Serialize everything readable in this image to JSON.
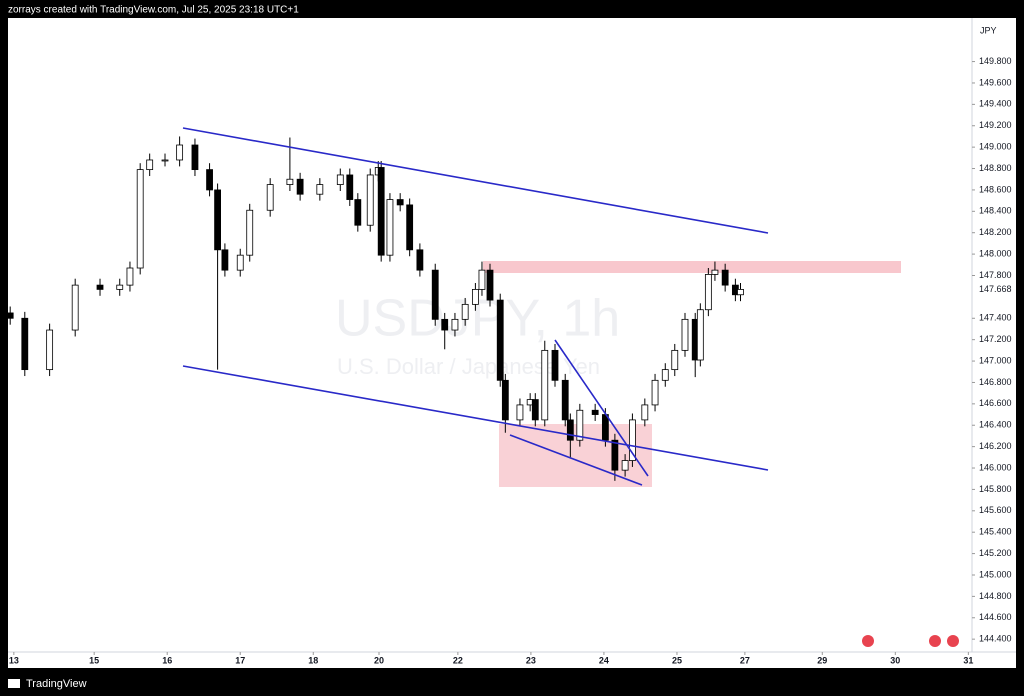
{
  "header": {
    "text": "zorrays created with TradingView.com, Jul 25, 2025 23:18 UTC+1"
  },
  "footer": {
    "brand": "TradingView"
  },
  "chart_data": {
    "type": "candlestick",
    "title": "USDJPY, 1h",
    "subtitle": "U.S. Dollar / Japanese Yen",
    "currency": "JPY",
    "last_price": {
      "value": 147.668,
      "label": "147.668"
    },
    "up_color": "#ffffff",
    "down_color": "#000000",
    "wick_color": "#000000",
    "x": [
      -0.05,
      0.15,
      0.49,
      0.84,
      1.18,
      1.45,
      1.59,
      1.73,
      1.86,
      2.07,
      2.27,
      2.48,
      2.68,
      2.79,
      2.89,
      3.1,
      3.23,
      3.51,
      3.78,
      3.92,
      4.19,
      4.47,
      4.6,
      4.71,
      4.88,
      4.99,
      5.03,
      5.15,
      5.29,
      5.42,
      5.56,
      5.77,
      5.9,
      6.04,
      6.18,
      6.32,
      6.41,
      6.52,
      6.66,
      6.73,
      6.93,
      7.07,
      7.14,
      7.27,
      7.41,
      7.55,
      7.62,
      7.75,
      7.96,
      8.1,
      8.23,
      8.37,
      8.47,
      8.64,
      8.78,
      8.92,
      9.05,
      9.19,
      9.33,
      9.4,
      9.51,
      9.6,
      9.74,
      9.88,
      9.95
    ],
    "open": [
      147.45,
      147.4,
      146.92,
      147.29,
      147.71,
      147.67,
      147.71,
      147.87,
      148.79,
      148.88,
      148.88,
      149.02,
      148.79,
      148.6,
      148.04,
      147.85,
      147.99,
      148.41,
      148.65,
      148.7,
      148.56,
      148.65,
      148.74,
      148.51,
      148.27,
      148.74,
      148.81,
      147.99,
      148.51,
      148.46,
      148.04,
      147.85,
      147.39,
      147.29,
      147.39,
      147.53,
      147.67,
      147.85,
      147.57,
      146.82,
      146.45,
      146.59,
      146.64,
      146.45,
      147.1,
      146.82,
      146.45,
      146.26,
      146.54,
      146.5,
      146.26,
      145.98,
      146.07,
      146.45,
      146.59,
      146.82,
      146.92,
      147.1,
      147.39,
      147.01,
      147.48,
      147.81,
      147.85,
      147.71,
      147.62
    ],
    "high": [
      147.51,
      147.46,
      147.35,
      147.77,
      147.77,
      147.77,
      147.93,
      148.85,
      148.94,
      148.94,
      149.1,
      149.08,
      148.85,
      148.66,
      148.1,
      148.05,
      148.47,
      148.71,
      149.09,
      148.76,
      148.71,
      148.8,
      148.8,
      148.57,
      148.8,
      148.87,
      148.87,
      148.57,
      148.57,
      148.52,
      148.1,
      147.91,
      147.45,
      147.45,
      147.59,
      147.73,
      147.93,
      147.91,
      147.63,
      146.88,
      146.65,
      146.7,
      146.7,
      147.19,
      147.16,
      146.88,
      146.51,
      146.6,
      146.6,
      146.56,
      146.32,
      146.13,
      146.51,
      146.65,
      146.88,
      146.98,
      147.16,
      147.45,
      147.45,
      147.54,
      147.87,
      147.93,
      147.91,
      147.77,
      147.73
    ],
    "low": [
      147.34,
      146.86,
      146.86,
      147.23,
      147.61,
      147.61,
      147.65,
      147.81,
      148.73,
      148.82,
      148.82,
      148.73,
      148.54,
      146.92,
      147.79,
      147.79,
      147.93,
      148.35,
      148.59,
      148.5,
      148.5,
      148.59,
      148.45,
      148.21,
      148.21,
      148.68,
      147.93,
      147.93,
      148.4,
      147.98,
      147.79,
      147.33,
      147.11,
      147.23,
      147.33,
      147.47,
      147.61,
      147.51,
      146.76,
      146.33,
      146.39,
      146.53,
      146.39,
      146.39,
      146.76,
      146.39,
      146.1,
      146.2,
      146.44,
      146.2,
      145.88,
      145.92,
      146.01,
      146.39,
      146.53,
      146.76,
      146.86,
      147.04,
      146.85,
      146.95,
      147.42,
      147.75,
      147.65,
      147.56,
      147.56
    ],
    "close": [
      147.4,
      146.92,
      147.29,
      147.71,
      147.67,
      147.71,
      147.87,
      148.79,
      148.88,
      148.88,
      149.02,
      148.79,
      148.6,
      148.04,
      147.85,
      147.99,
      148.41,
      148.65,
      148.7,
      148.56,
      148.65,
      148.74,
      148.51,
      148.27,
      148.74,
      148.81,
      147.99,
      148.51,
      148.46,
      148.04,
      147.85,
      147.39,
      147.29,
      147.39,
      147.53,
      147.67,
      147.85,
      147.57,
      146.82,
      146.45,
      146.59,
      146.64,
      146.45,
      147.1,
      146.82,
      146.45,
      146.26,
      146.54,
      146.5,
      146.26,
      145.98,
      146.07,
      146.45,
      146.59,
      146.82,
      146.92,
      147.1,
      147.39,
      147.01,
      147.48,
      147.81,
      147.85,
      147.71,
      147.62,
      147.67
    ],
    "xlim": [
      -0.08,
      13.12
    ],
    "xticks": [
      {
        "value": 0,
        "label": "13"
      },
      {
        "value": 1.1,
        "label": "15"
      },
      {
        "value": 2.1,
        "label": "16"
      },
      {
        "value": 3.1,
        "label": "17"
      },
      {
        "value": 4.1,
        "label": "18"
      },
      {
        "value": 5.0,
        "label": "20"
      },
      {
        "value": 6.08,
        "label": "22"
      },
      {
        "value": 7.08,
        "label": "23"
      },
      {
        "value": 8.08,
        "label": "24"
      },
      {
        "value": 9.08,
        "label": "25"
      },
      {
        "value": 10.01,
        "label": "27"
      },
      {
        "value": 11.07,
        "label": "29"
      },
      {
        "value": 12.07,
        "label": "30"
      },
      {
        "value": 13.07,
        "label": "31"
      }
    ],
    "ylim": [
      144.28,
      150.17
    ],
    "yticks": [
      {
        "value": 144.4,
        "label": "144.400"
      },
      {
        "value": 144.6,
        "label": "144.600"
      },
      {
        "value": 144.8,
        "label": "144.800"
      },
      {
        "value": 145.0,
        "label": "145.000"
      },
      {
        "value": 145.2,
        "label": "145.200"
      },
      {
        "value": 145.4,
        "label": "145.400"
      },
      {
        "value": 145.6,
        "label": "145.600"
      },
      {
        "value": 145.8,
        "label": "145.800"
      },
      {
        "value": 146.0,
        "label": "146.000"
      },
      {
        "value": 146.2,
        "label": "146.200"
      },
      {
        "value": 146.4,
        "label": "146.400"
      },
      {
        "value": 146.6,
        "label": "146.600"
      },
      {
        "value": 146.8,
        "label": "146.800"
      },
      {
        "value": 147.0,
        "label": "147.000"
      },
      {
        "value": 147.2,
        "label": "147.200"
      },
      {
        "value": 147.4,
        "label": "147.400"
      },
      {
        "value": 147.8,
        "label": "147.800"
      },
      {
        "value": 148.0,
        "label": "148.000"
      },
      {
        "value": 148.2,
        "label": "148.200"
      },
      {
        "value": 148.4,
        "label": "148.400"
      },
      {
        "value": 148.6,
        "label": "148.600"
      },
      {
        "value": 148.8,
        "label": "148.800"
      },
      {
        "value": 149.0,
        "label": "149.000"
      },
      {
        "value": 149.2,
        "label": "149.200"
      },
      {
        "value": 149.4,
        "label": "149.400"
      },
      {
        "value": 149.6,
        "label": "149.600"
      },
      {
        "value": 149.8,
        "label": "149.800"
      }
    ],
    "grid": false
  }
}
